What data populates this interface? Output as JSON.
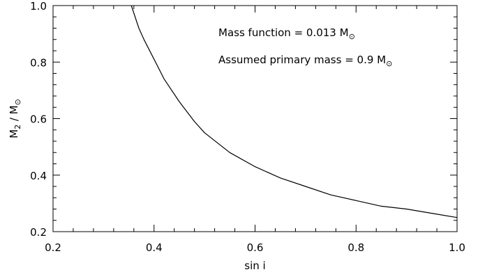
{
  "chart_data": {
    "type": "line",
    "title": "",
    "xlabel": "sin i",
    "ylabel": {
      "prefix": "M",
      "sub": "2",
      "sep": " / M",
      "sun": "⊙"
    },
    "xlim": [
      0.2,
      1.0
    ],
    "ylim": [
      0.2,
      1.0
    ],
    "x_ticks": [
      0.2,
      0.4,
      0.6,
      0.8,
      1.0
    ],
    "y_ticks": [
      0.2,
      0.4,
      0.6,
      0.8,
      1.0
    ],
    "x_tick_labels": [
      "0.2",
      "0.4",
      "0.6",
      "0.8",
      "1.0"
    ],
    "y_tick_labels": [
      "0.2",
      "0.4",
      "0.6",
      "0.8",
      "1.0"
    ],
    "x_minor_step": 0.04,
    "y_minor_step": 0.04,
    "grid": false,
    "series": [
      {
        "x": [
          0.355,
          0.37,
          0.38,
          0.4,
          0.42,
          0.45,
          0.48,
          0.5,
          0.55,
          0.6,
          0.65,
          0.7,
          0.75,
          0.8,
          0.85,
          0.9,
          0.95,
          1.0
        ],
        "y": [
          1.0,
          0.92,
          0.88,
          0.81,
          0.74,
          0.66,
          0.59,
          0.55,
          0.48,
          0.43,
          0.39,
          0.36,
          0.33,
          0.31,
          0.29,
          0.28,
          0.265,
          0.25
        ],
        "color": "#000000"
      }
    ],
    "annotations": [
      {
        "text": "Mass function = 0.013 M",
        "sun": "⊙"
      },
      {
        "text": "Assumed primary mass = 0.9 M",
        "sun": "⊙"
      }
    ]
  }
}
